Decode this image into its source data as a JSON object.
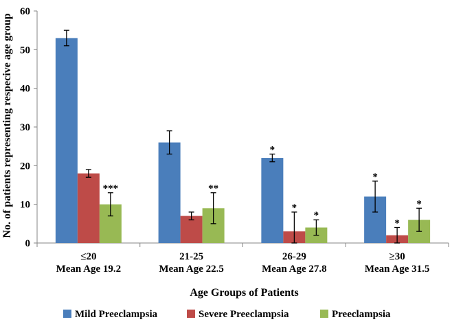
{
  "chart_data": {
    "type": "bar",
    "title": "",
    "xlabel": "Age Groups of Patients",
    "ylabel": "No. of patients representing respecive age group",
    "ylim": [
      0,
      60
    ],
    "yticks": [
      "0",
      "10",
      "20",
      "30",
      "40",
      "50",
      "60"
    ],
    "categories": [
      {
        "line1": "≤20",
        "line2": "Mean Age 19.2"
      },
      {
        "line1": "21-25",
        "line2": "Mean Age 22.5"
      },
      {
        "line1": "26-29",
        "line2": "Mean Age 27.8"
      },
      {
        "line1": "≥30",
        "line2": "Mean Age 31.5"
      }
    ],
    "series": [
      {
        "name": "Mild Preeclampsia",
        "color": "#4a7ebb",
        "values": [
          53,
          26,
          22,
          12
        ],
        "errors": [
          2,
          3,
          1,
          4
        ],
        "stars": [
          "",
          "",
          "*",
          "*"
        ]
      },
      {
        "name": "Severe Preeclampsia",
        "color": "#be4b48",
        "values": [
          18,
          7,
          3,
          2
        ],
        "errors": [
          1,
          1,
          5,
          2
        ],
        "stars": [
          "",
          "",
          "*",
          "*"
        ]
      },
      {
        "name": "Preeclampsia",
        "color": "#98b954",
        "values": [
          10,
          9,
          4,
          6
        ],
        "errors": [
          3,
          4,
          2,
          3
        ],
        "stars": [
          "***",
          "**",
          "*",
          "*"
        ]
      }
    ],
    "legend_position": "bottom"
  }
}
